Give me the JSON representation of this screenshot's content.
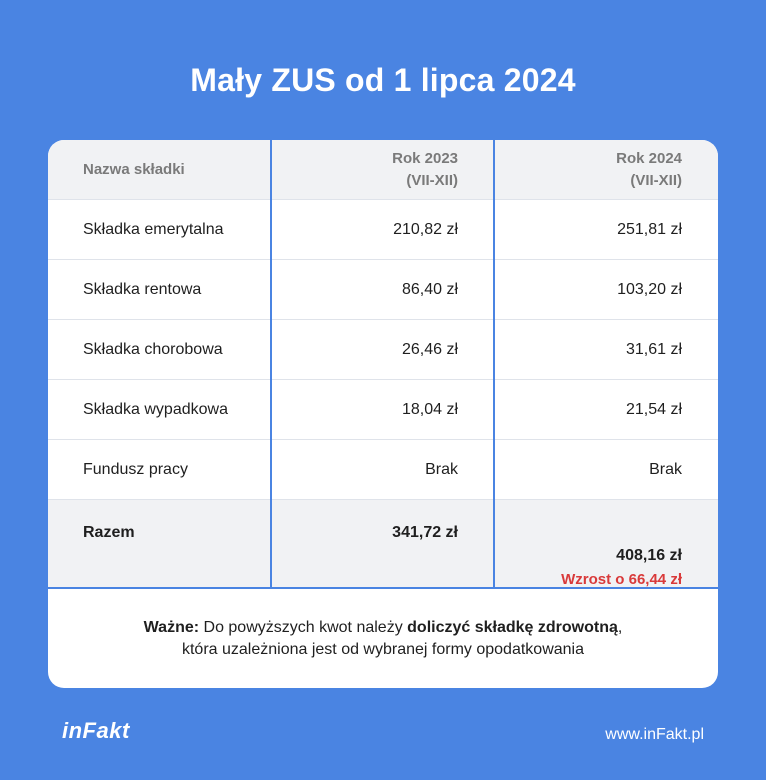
{
  "title": "Mały ZUS od 1 lipca 2024",
  "table": {
    "header": {
      "col1": "Nazwa składki",
      "col2_line1": "Rok 2023",
      "col2_line2": "(VII-XII)",
      "col3_line1": "Rok 2024",
      "col3_line2": "(VII-XII)"
    },
    "rows": [
      {
        "name": "Składka emerytalna",
        "y2023": "210,82 zł",
        "y2024": "251,81 zł"
      },
      {
        "name": "Składka rentowa",
        "y2023": "86,40 zł",
        "y2024": "103,20 zł"
      },
      {
        "name": "Składka chorobowa",
        "y2023": "26,46 zł",
        "y2024": "31,61 zł"
      },
      {
        "name": "Składka wypadkowa",
        "y2023": "18,04 zł",
        "y2024": "21,54 zł"
      },
      {
        "name": "Fundusz pracy",
        "y2023": "Brak",
        "y2024": "Brak"
      }
    ],
    "total": {
      "name": "Razem",
      "y2023": "341,72 zł",
      "y2024": "408,16 zł",
      "increase": "Wzrost o 66,44 zł"
    }
  },
  "note": {
    "bold1": "Ważne:",
    "text1": " Do powyższych kwot należy ",
    "bold2": "doliczyć składkę zdrowotną",
    "text2": ",",
    "line2": "która uzależniona jest od wybranej formy opodatkowania"
  },
  "footer": {
    "logo": "inFakt",
    "url": "www.inFakt.pl"
  },
  "colors": {
    "background": "#4a84e2",
    "increase": "#d93a3a"
  }
}
